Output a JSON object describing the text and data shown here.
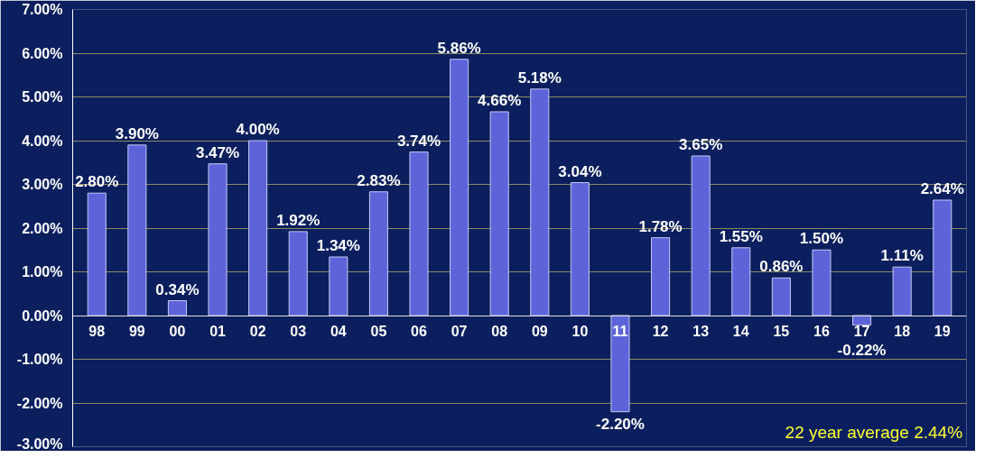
{
  "chart_data": {
    "type": "bar",
    "categories": [
      "98",
      "99",
      "00",
      "01",
      "02",
      "03",
      "04",
      "05",
      "06",
      "07",
      "08",
      "09",
      "10",
      "11",
      "12",
      "13",
      "14",
      "15",
      "16",
      "17",
      "18",
      "19"
    ],
    "series": [
      {
        "color": "#5d63d8",
        "values": [
          2.8,
          3.9,
          0.34,
          3.47,
          4.0,
          1.92,
          1.34,
          2.83,
          3.74,
          5.86,
          4.66,
          5.18,
          3.04,
          -2.2,
          1.78,
          3.65,
          1.55,
          0.86,
          1.5,
          -0.22,
          1.11,
          2.64
        ],
        "value_labels": [
          "2.80%",
          "3.90%",
          "0.34%",
          "3.47%",
          "4.00%",
          "1.92%",
          "1.34%",
          "2.83%",
          "3.74%",
          "5.86%",
          "4.66%",
          "5.18%",
          "3.04%",
          "-2.20%",
          "1.78%",
          "3.65%",
          "1.55%",
          "0.86%",
          "1.50%",
          "-0.22%",
          "1.11%",
          "2.64%"
        ]
      }
    ],
    "ylim": [
      -3,
      7
    ],
    "yticks": [
      {
        "value": -3,
        "label": "-3.00%"
      },
      {
        "value": -2,
        "label": "-2.00%"
      },
      {
        "value": -1,
        "label": "-1.00%"
      },
      {
        "value": 0,
        "label": "0.00%"
      },
      {
        "value": 1,
        "label": "1.00%"
      },
      {
        "value": 2,
        "label": "2.00%"
      },
      {
        "value": 3,
        "label": "3.00%"
      },
      {
        "value": 4,
        "label": "4.00%"
      },
      {
        "value": 5,
        "label": "5.00%"
      },
      {
        "value": 6,
        "label": "6.00%"
      },
      {
        "value": 7,
        "label": "7.00%"
      }
    ],
    "grid": "y",
    "annotations": [
      "22 year average 2.44%"
    ]
  }
}
